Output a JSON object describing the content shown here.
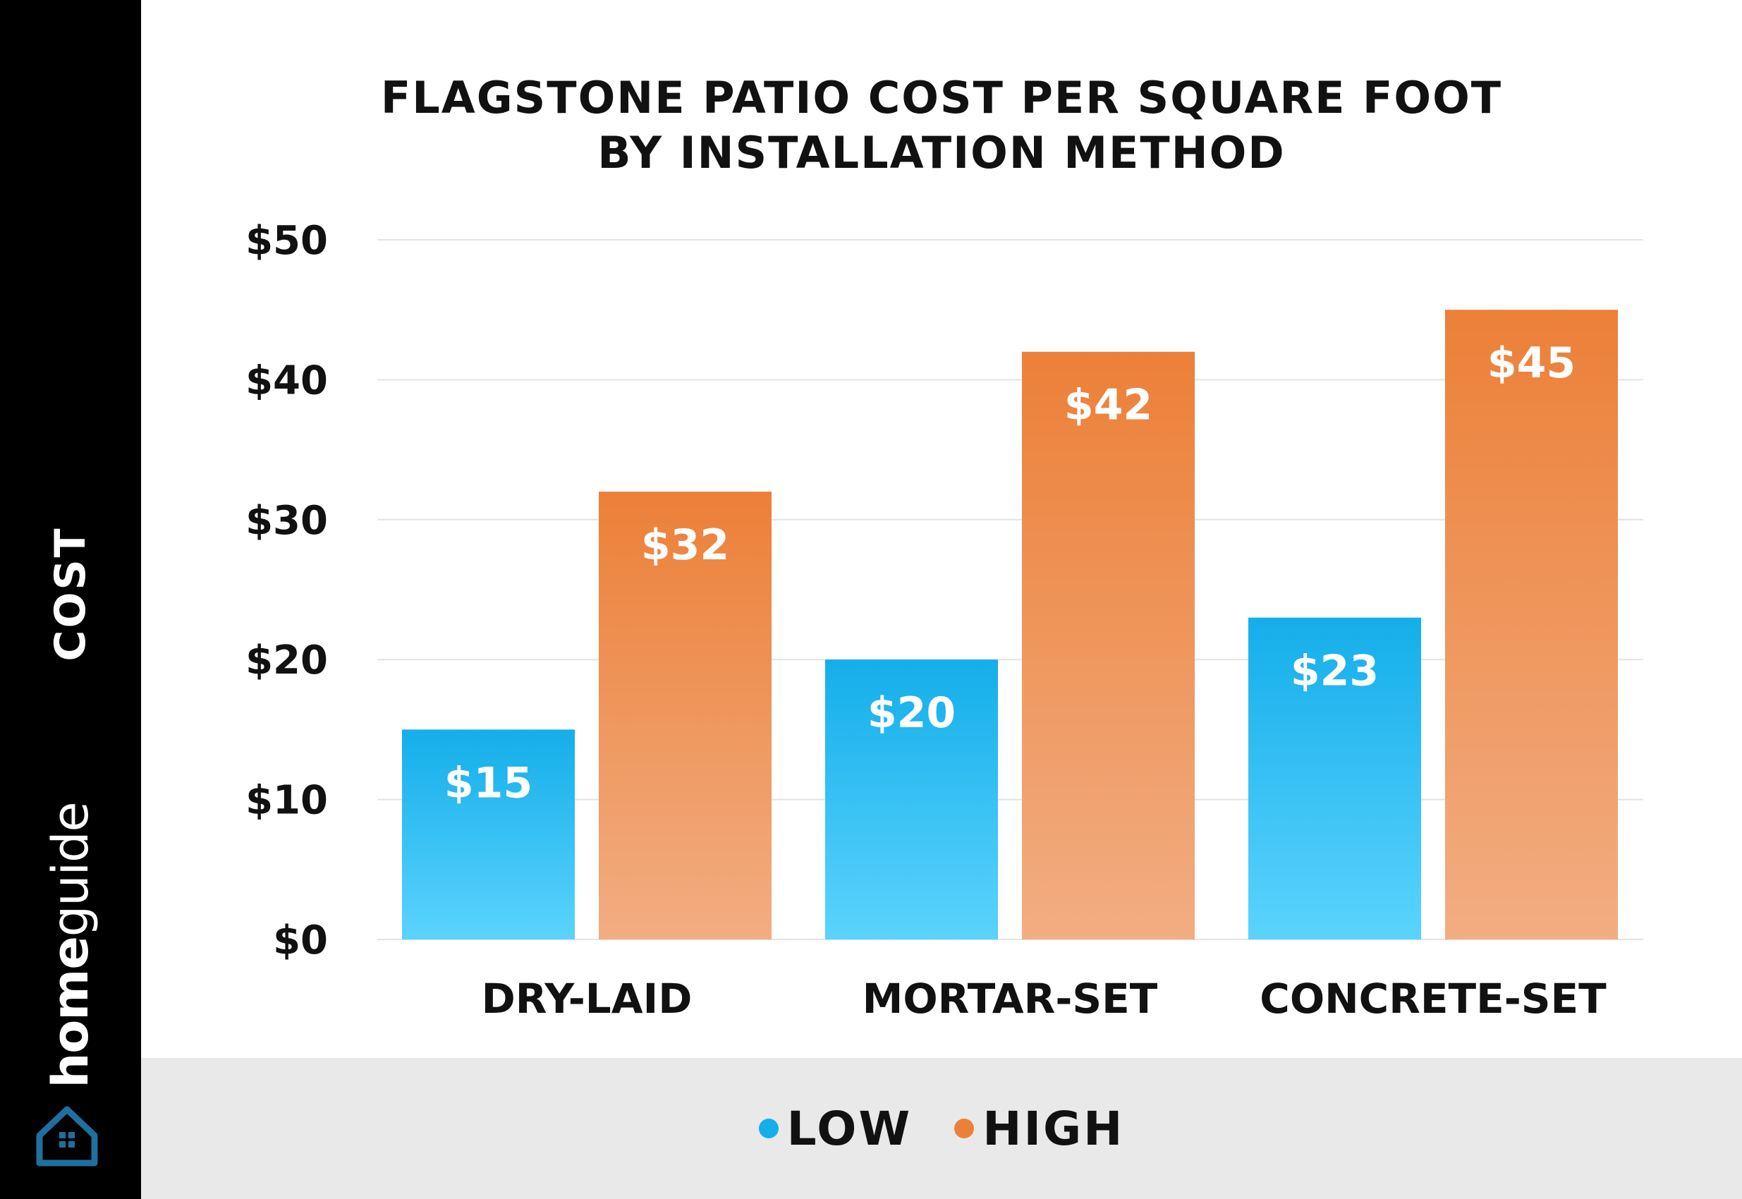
{
  "sidebar": {
    "axis_label": "COST",
    "brand_home": "home",
    "brand_guide": "guide",
    "logo_icon": "house-logo-icon",
    "bg_color": "#000000"
  },
  "legend": [
    {
      "label": "LOW",
      "color": "#14aeea"
    },
    {
      "label": "HIGH",
      "color": "#ec8038"
    }
  ],
  "chart_data": {
    "type": "bar",
    "title": "FLAGSTONE PATIO COST PER SQUARE FOOT",
    "subtitle": "BY INSTALLATION METHOD",
    "ylabel": "COST",
    "xlabel": "",
    "categories": [
      "DRY-LAID",
      "MORTAR-SET",
      "CONCRETE-SET"
    ],
    "series": [
      {
        "name": "LOW",
        "values": [
          15,
          20,
          23
        ],
        "color_top": "#14aeea",
        "color_bottom": "#5bd3fd"
      },
      {
        "name": "HIGH",
        "values": [
          32,
          42,
          45
        ],
        "color_top": "#ec8038",
        "color_bottom": "#f2ad82"
      }
    ],
    "data_labels": [
      [
        "$15",
        "$20",
        "$23"
      ],
      [
        "$32",
        "$42",
        "$45"
      ]
    ],
    "ylim": [
      0,
      50
    ],
    "yticks": [
      0,
      10,
      20,
      30,
      40,
      50
    ],
    "ytick_labels": [
      "$0",
      "$10",
      "$20",
      "$30",
      "$40",
      "$50"
    ],
    "grid": true,
    "legend_position": "bottom-center"
  }
}
